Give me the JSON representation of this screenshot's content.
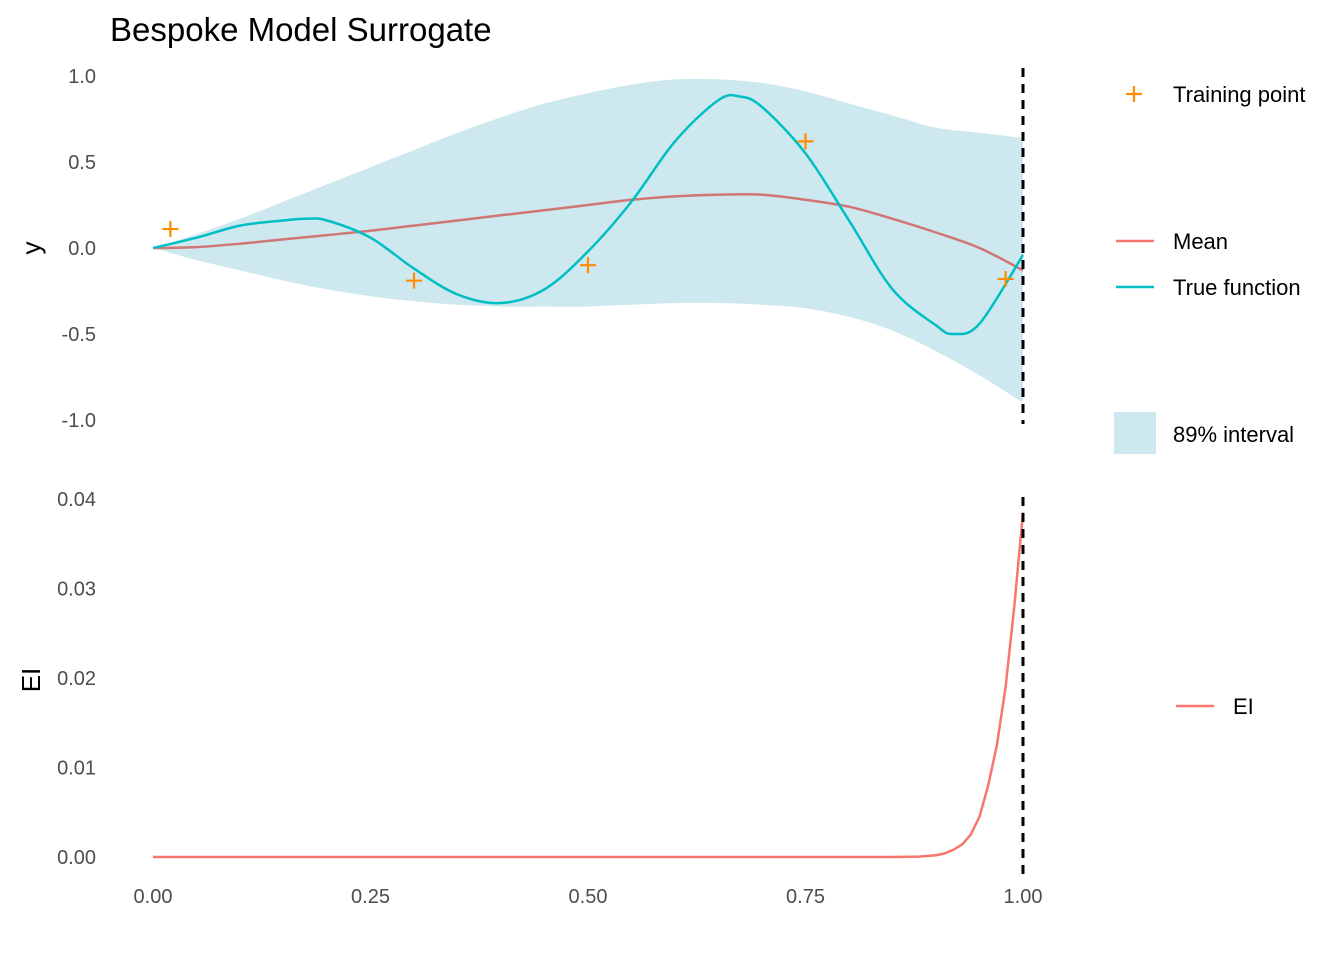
{
  "title": "Bespoke Model Surrogate",
  "colors": {
    "band": "#cde8ee",
    "mean": "#d17676",
    "true_function": "#00bfc4",
    "training_point": "#ff8c00",
    "ei": "#f8766d",
    "vline": "#000000"
  },
  "chart_data": [
    {
      "type": "line",
      "panel": "surrogate",
      "xlabel": "",
      "ylabel": "y",
      "xlim": [
        0,
        1
      ],
      "ylim": [
        -1.0,
        1.0
      ],
      "x_ticks": [
        "0.00",
        "0.25",
        "0.50",
        "0.75",
        "1.00"
      ],
      "y_ticks": [
        "1.0",
        "0.5",
        "0.0",
        "-0.5",
        "-1.0"
      ],
      "grid": false,
      "vline_x": 1.0,
      "legend_position": "right",
      "series": [
        {
          "name": "89% interval",
          "kind": "band",
          "x": [
            0.0,
            0.05,
            0.1,
            0.15,
            0.2,
            0.25,
            0.3,
            0.35,
            0.4,
            0.45,
            0.5,
            0.55,
            0.6,
            0.65,
            0.7,
            0.75,
            0.8,
            0.85,
            0.9,
            0.95,
            1.0
          ],
          "upper": [
            0.0,
            0.08,
            0.17,
            0.27,
            0.37,
            0.47,
            0.57,
            0.67,
            0.76,
            0.84,
            0.9,
            0.95,
            0.98,
            0.98,
            0.96,
            0.91,
            0.84,
            0.77,
            0.7,
            0.67,
            0.64
          ],
          "lower": [
            0.0,
            -0.07,
            -0.13,
            -0.19,
            -0.24,
            -0.28,
            -0.31,
            -0.33,
            -0.34,
            -0.34,
            -0.34,
            -0.33,
            -0.32,
            -0.32,
            -0.33,
            -0.35,
            -0.4,
            -0.48,
            -0.6,
            -0.74,
            -0.9
          ]
        },
        {
          "name": "Mean",
          "kind": "line",
          "x": [
            0.0,
            0.05,
            0.1,
            0.15,
            0.2,
            0.25,
            0.3,
            0.35,
            0.4,
            0.45,
            0.5,
            0.55,
            0.6,
            0.65,
            0.7,
            0.75,
            0.8,
            0.85,
            0.9,
            0.95,
            1.0
          ],
          "y": [
            0.0,
            0.005,
            0.025,
            0.05,
            0.075,
            0.1,
            0.13,
            0.16,
            0.19,
            0.22,
            0.25,
            0.28,
            0.3,
            0.31,
            0.31,
            0.28,
            0.24,
            0.17,
            0.09,
            0.0,
            -0.13
          ]
        },
        {
          "name": "True function",
          "kind": "line",
          "x": [
            0.0,
            0.05,
            0.1,
            0.15,
            0.175,
            0.2,
            0.25,
            0.3,
            0.35,
            0.4,
            0.45,
            0.5,
            0.55,
            0.6,
            0.65,
            0.675,
            0.7,
            0.75,
            0.8,
            0.85,
            0.9,
            0.92,
            0.95,
            1.0
          ],
          "y": [
            0.0,
            0.06,
            0.13,
            0.16,
            0.17,
            0.16,
            0.06,
            -0.12,
            -0.27,
            -0.32,
            -0.24,
            -0.02,
            0.27,
            0.62,
            0.86,
            0.88,
            0.82,
            0.55,
            0.16,
            -0.24,
            -0.45,
            -0.5,
            -0.44,
            -0.04
          ]
        },
        {
          "name": "Training point",
          "kind": "points",
          "x": [
            0.02,
            0.3,
            0.5,
            0.75,
            0.98
          ],
          "y": [
            0.11,
            -0.19,
            -0.1,
            0.62,
            -0.18
          ]
        }
      ]
    },
    {
      "type": "line",
      "panel": "acquisition",
      "xlabel": "",
      "ylabel": "EI",
      "xlim": [
        0,
        1
      ],
      "ylim": [
        0,
        0.04
      ],
      "x_ticks": [
        "0.00",
        "0.25",
        "0.50",
        "0.75",
        "1.00"
      ],
      "y_ticks": [
        "0.04",
        "0.03",
        "0.02",
        "0.01",
        "0.00"
      ],
      "grid": false,
      "vline_x": 1.0,
      "legend_position": "right",
      "series": [
        {
          "name": "EI",
          "kind": "line",
          "x": [
            0.0,
            0.5,
            0.85,
            0.88,
            0.9,
            0.91,
            0.92,
            0.93,
            0.94,
            0.95,
            0.96,
            0.97,
            0.98,
            0.99,
            1.0
          ],
          "y": [
            0.0,
            0.0,
            0.0,
            5e-05,
            0.0002,
            0.0004,
            0.0008,
            0.0014,
            0.0025,
            0.0045,
            0.008,
            0.0125,
            0.019,
            0.028,
            0.0385
          ]
        }
      ]
    }
  ],
  "legend": {
    "training_point": "Training point",
    "mean": "Mean",
    "true_function": "True function",
    "interval": "89% interval",
    "ei": "EI"
  }
}
